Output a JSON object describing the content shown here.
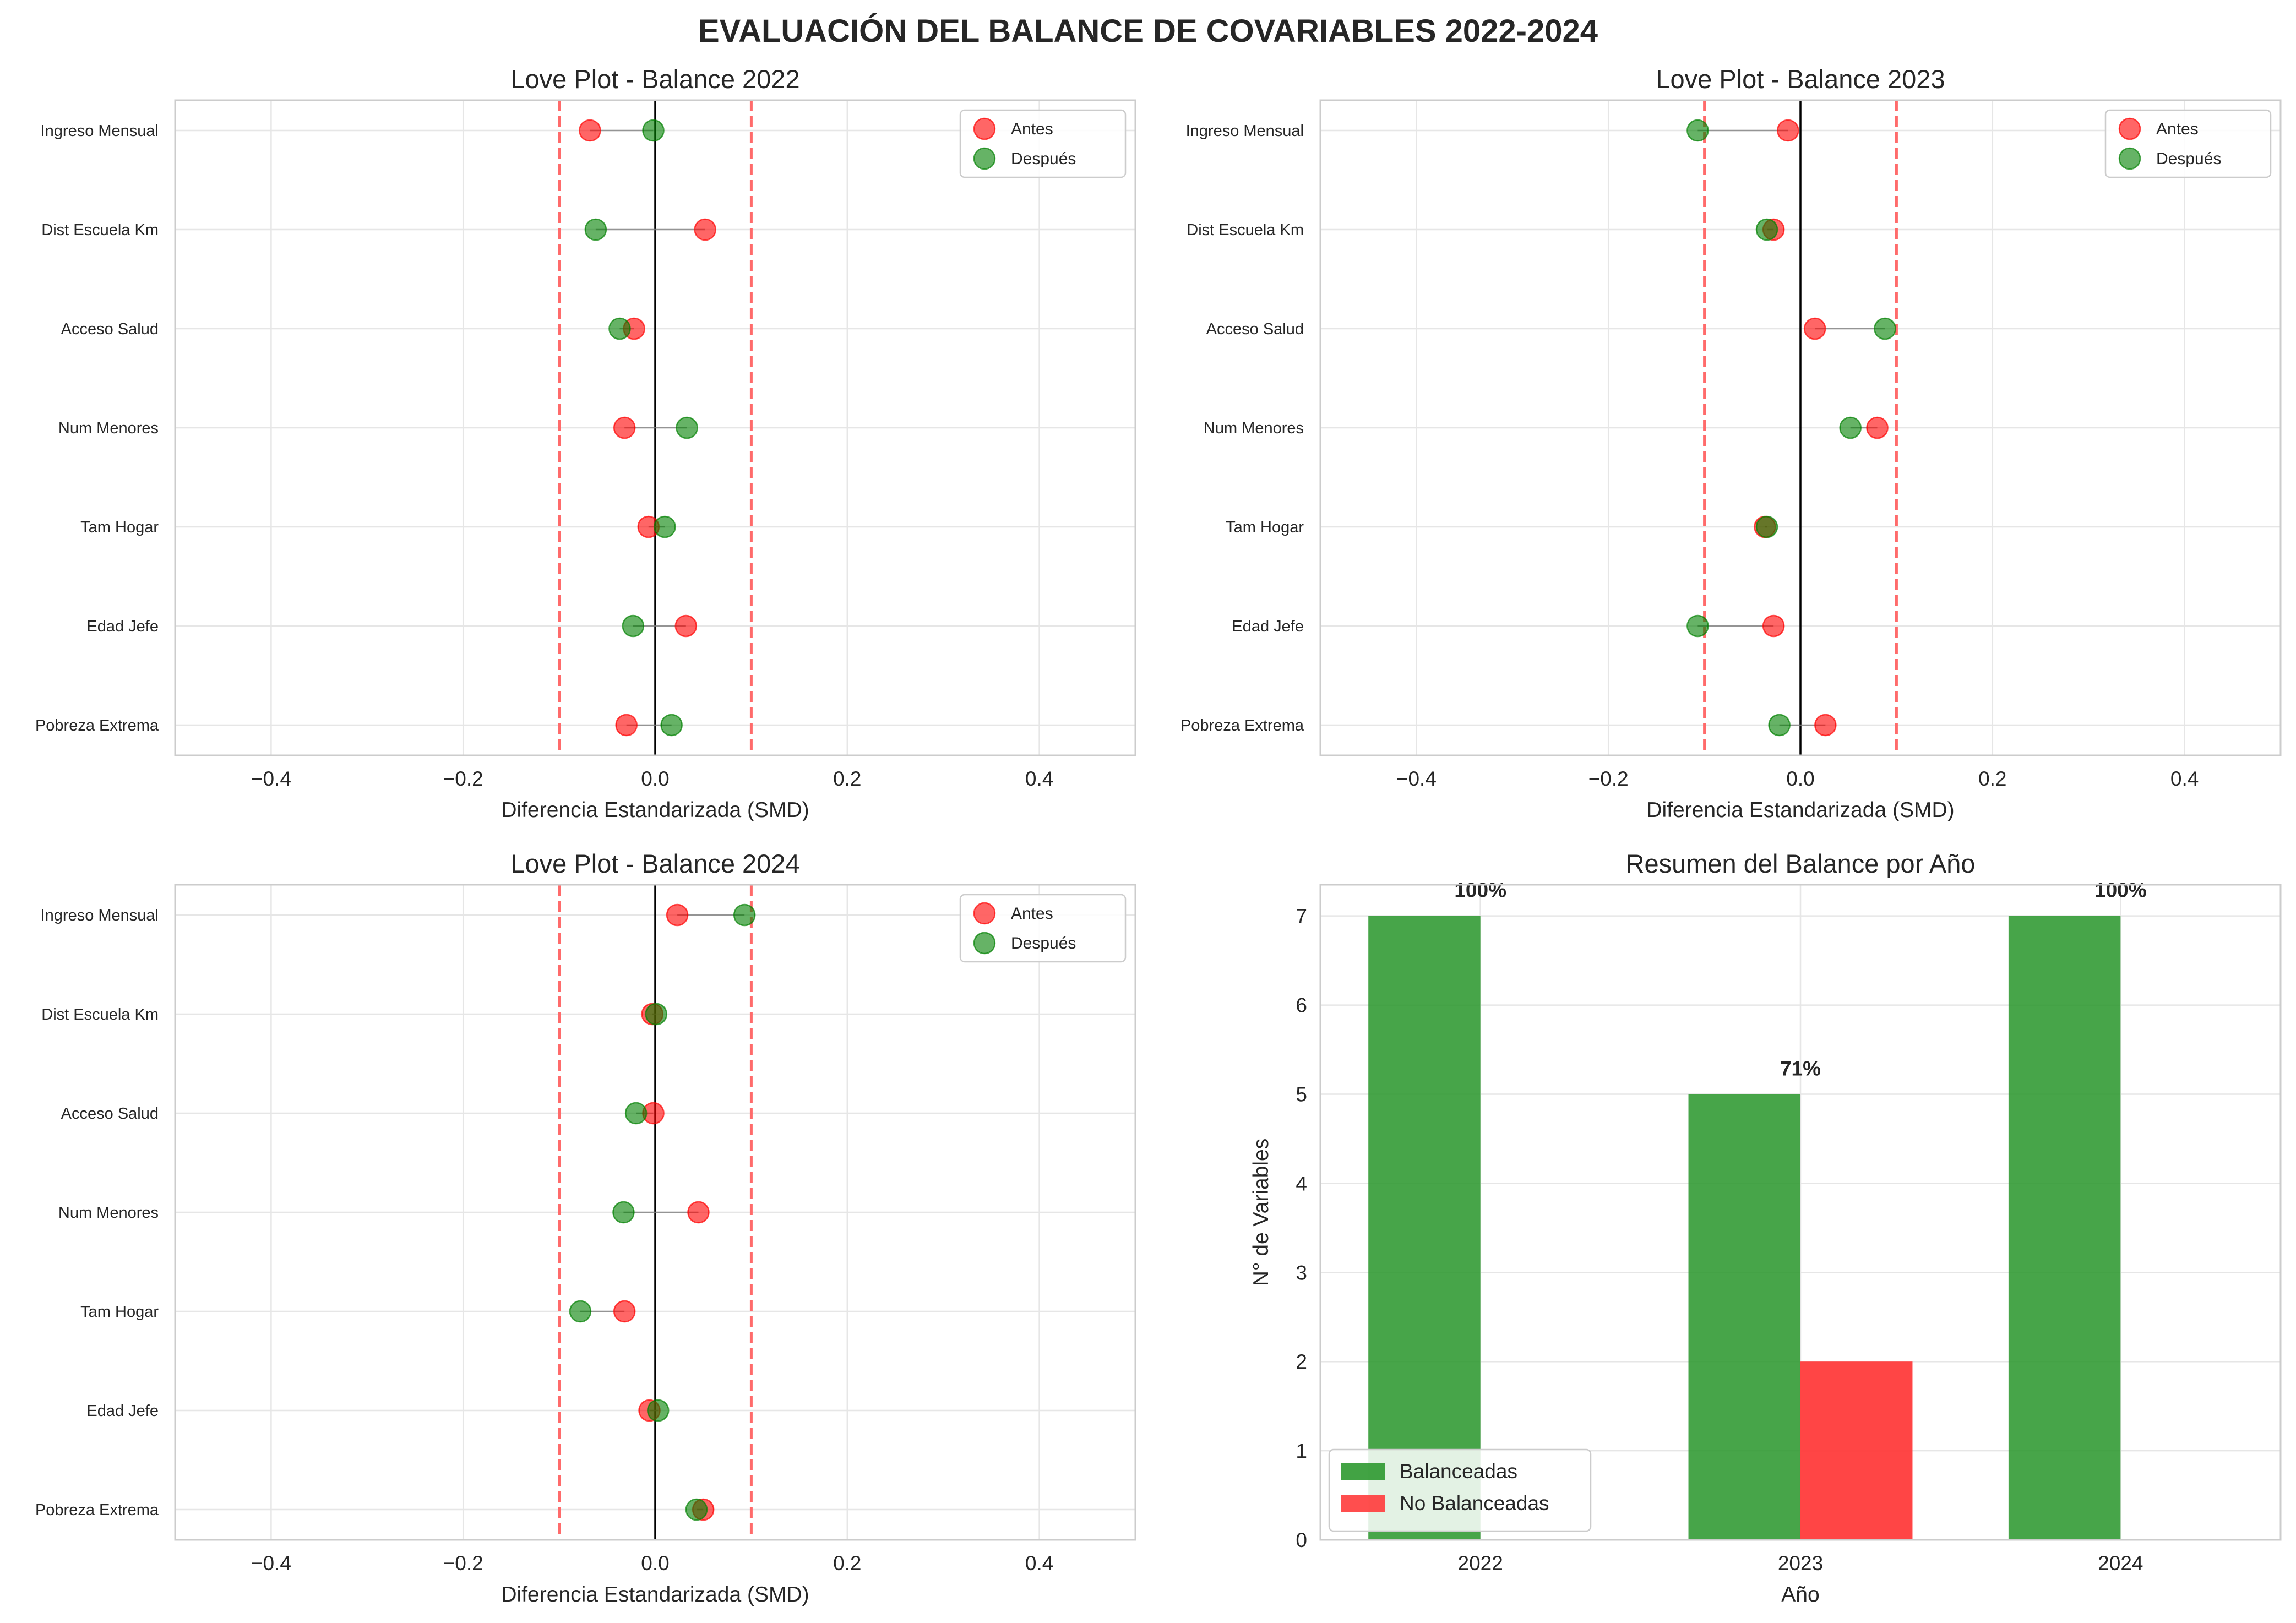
{
  "figure_title": "EVALUACIÓN DEL BALANCE DE COVARIABLES 2022-2024",
  "colors": {
    "antes": "#ff0000",
    "despues": "#008000",
    "balanced_bar": "#2e9930",
    "unbalanced_bar": "#ff3b3b",
    "threshold_line": "#ff6b6b",
    "zero_line": "#000000",
    "grid": "#e6e6e6",
    "frame": "#cccccc"
  },
  "chart_data": [
    {
      "type": "scatter",
      "title": "Love Plot - Balance 2022",
      "xlabel": "Diferencia Estandarizada (SMD)",
      "ylabel": "",
      "xlim": [
        -0.5,
        0.5
      ],
      "xticks": [
        "−0.4",
        "−0.2",
        "0.0",
        "0.2",
        "0.4"
      ],
      "xtick_values": [
        -0.4,
        -0.2,
        0.0,
        0.2,
        0.4
      ],
      "thresholds": [
        -0.1,
        0.1
      ],
      "categories": [
        "Ingreso Mensual",
        "Dist Escuela Km",
        "Acceso Salud",
        "Num Menores",
        "Tam Hogar",
        "Edad Jefe",
        "Pobreza Extrema"
      ],
      "series": [
        {
          "name": "Antes",
          "values": [
            -0.068,
            0.052,
            -0.022,
            -0.032,
            -0.007,
            0.032,
            -0.03
          ]
        },
        {
          "name": "Después",
          "values": [
            -0.002,
            -0.062,
            -0.037,
            0.033,
            0.01,
            -0.023,
            0.017
          ]
        }
      ],
      "legend": "top-right",
      "grid": true
    },
    {
      "type": "scatter",
      "title": "Love Plot - Balance 2023",
      "xlabel": "Diferencia Estandarizada (SMD)",
      "ylabel": "",
      "xlim": [
        -0.5,
        0.5
      ],
      "xticks": [
        "−0.4",
        "−0.2",
        "0.0",
        "0.2",
        "0.4"
      ],
      "xtick_values": [
        -0.4,
        -0.2,
        0.0,
        0.2,
        0.4
      ],
      "thresholds": [
        -0.1,
        0.1
      ],
      "categories": [
        "Ingreso Mensual",
        "Dist Escuela Km",
        "Acceso Salud",
        "Num Menores",
        "Tam Hogar",
        "Edad Jefe",
        "Pobreza Extrema"
      ],
      "series": [
        {
          "name": "Antes",
          "values": [
            -0.013,
            -0.028,
            0.015,
            0.08,
            -0.037,
            -0.028,
            0.026
          ]
        },
        {
          "name": "Después",
          "values": [
            -0.107,
            -0.035,
            0.088,
            0.052,
            -0.035,
            -0.107,
            -0.022
          ]
        }
      ],
      "legend": "top-right",
      "grid": true
    },
    {
      "type": "scatter",
      "title": "Love Plot - Balance 2024",
      "xlabel": "Diferencia Estandarizada (SMD)",
      "ylabel": "",
      "xlim": [
        -0.5,
        0.5
      ],
      "xticks": [
        "−0.4",
        "−0.2",
        "0.0",
        "0.2",
        "0.4"
      ],
      "xtick_values": [
        -0.4,
        -0.2,
        0.0,
        0.2,
        0.4
      ],
      "thresholds": [
        -0.1,
        0.1
      ],
      "categories": [
        "Ingreso Mensual",
        "Dist Escuela Km",
        "Acceso Salud",
        "Num Menores",
        "Tam Hogar",
        "Edad Jefe",
        "Pobreza Extrema"
      ],
      "series": [
        {
          "name": "Antes",
          "values": [
            0.023,
            -0.003,
            -0.002,
            0.045,
            -0.032,
            -0.006,
            0.05
          ]
        },
        {
          "name": "Después",
          "values": [
            0.093,
            0.001,
            -0.02,
            -0.033,
            -0.078,
            0.003,
            0.043
          ]
        }
      ],
      "legend": "top-right",
      "grid": true
    },
    {
      "type": "bar",
      "title": "Resumen del Balance por Año",
      "xlabel": "Año",
      "ylabel": "N° de Variables",
      "categories": [
        "2022",
        "2023",
        "2024"
      ],
      "ylim": [
        0,
        7.35
      ],
      "yticks": [
        0,
        1,
        2,
        3,
        4,
        5,
        6,
        7
      ],
      "series": [
        {
          "name": "Balanceadas",
          "values": [
            7,
            5,
            7
          ]
        },
        {
          "name": "No Balanceadas",
          "values": [
            0,
            2,
            0
          ]
        }
      ],
      "percent_labels": [
        "100%",
        "71%",
        "100%"
      ],
      "legend": "bottom-left",
      "grid": true
    }
  ]
}
